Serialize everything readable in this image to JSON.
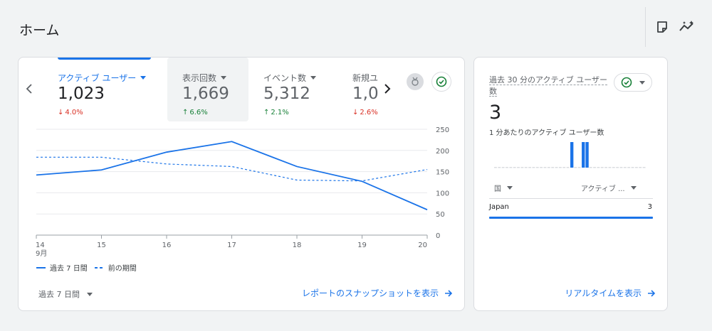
{
  "page": {
    "title": "ホーム"
  },
  "toolbar": {
    "icons": [
      "note-icon",
      "insights-icon"
    ]
  },
  "metrics": [
    {
      "label": "アクティブ ユーザー",
      "value": "1,023",
      "change": "4.0%",
      "direction": "down"
    },
    {
      "label": "表示回数",
      "value": "1,669",
      "change": "6.6%",
      "direction": "up"
    },
    {
      "label": "イベント数",
      "value": "5,312",
      "change": "2.1%",
      "direction": "up"
    },
    {
      "label": "新規ユ",
      "value": "1,0",
      "change": "2.6%",
      "direction": "down"
    }
  ],
  "chart_data": {
    "type": "line",
    "x": [
      "14",
      "15",
      "16",
      "17",
      "18",
      "19",
      "20"
    ],
    "x_month_label": "9月",
    "y_ticks": [
      "250",
      "200",
      "150",
      "100",
      "50",
      "0"
    ],
    "ylim": [
      0,
      250
    ],
    "series": [
      {
        "name": "過去 7 日間",
        "style": "solid",
        "values": [
          142,
          154,
          196,
          221,
          162,
          127,
          60
        ]
      },
      {
        "name": "前の期間",
        "style": "dashed",
        "values": [
          184,
          184,
          168,
          162,
          130,
          128,
          155
        ]
      }
    ],
    "color": "#1a73e8"
  },
  "legend": {
    "current": "過去 7 日間",
    "previous": "前の期間"
  },
  "footer": {
    "period": "過去 7 日間",
    "report_link": "レポートのスナップショットを表示"
  },
  "realtime": {
    "title_main": "過去 30 分のアクティブ ユーザー",
    "title_tail": "数",
    "value": "3",
    "subtitle": "1 分あたりのアクティブ ユーザー数",
    "minute_values": [
      0,
      0,
      0,
      0,
      0,
      0,
      0,
      0,
      0,
      0,
      0,
      0,
      0,
      0,
      0,
      0,
      0,
      0,
      0,
      0,
      1,
      0,
      0,
      1,
      1,
      0,
      0,
      0,
      0,
      0,
      0,
      0,
      0,
      0,
      0,
      0,
      0,
      0,
      0,
      0
    ],
    "col_country": "国",
    "col_users": "アクティブ ...",
    "rows": [
      {
        "country": "Japan",
        "value": "3"
      }
    ],
    "link": "リアルタイムを表示"
  }
}
